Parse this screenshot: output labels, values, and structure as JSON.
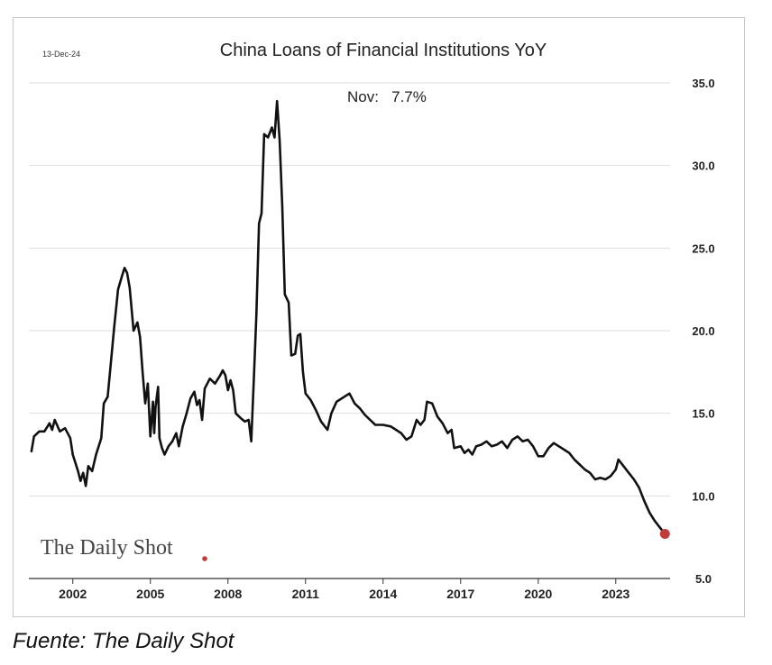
{
  "date_stamp": "13-Dec-24",
  "annotation": "Nov:   7.7%",
  "logo": "The Daily Shot",
  "caption": "Fuente: The Daily Shot",
  "colors": {
    "line": "#111111",
    "last_point": "#c23b3b",
    "grid": "#dddddd",
    "logo_dot": "#c23b3b"
  },
  "chart_data": {
    "type": "line",
    "title": "China Loans of Financial Institutions YoY",
    "xlabel": "",
    "ylabel": "",
    "xlim": [
      2000.3,
      2025.1
    ],
    "ylim": [
      5.0,
      35.0
    ],
    "x_ticks": [
      2002,
      2005,
      2008,
      2011,
      2014,
      2017,
      2020,
      2023
    ],
    "x_tick_labels": [
      "2002",
      "2005",
      "2008",
      "2011",
      "2014",
      "2017",
      "2020",
      "2023"
    ],
    "y_ticks": [
      5,
      10,
      15,
      20,
      25,
      30,
      35
    ],
    "y_tick_labels": [
      "5.0",
      "10.0",
      "15.0",
      "20.0",
      "25.0",
      "30.0",
      "35.0"
    ],
    "y_axis_position": "right",
    "grid": "horizontal",
    "series": [
      {
        "values": [
          [
            2000.4,
            12.7
          ],
          [
            2000.5,
            13.6
          ],
          [
            2000.7,
            13.9
          ],
          [
            2000.9,
            13.9
          ],
          [
            2001.1,
            14.4
          ],
          [
            2001.2,
            14.0
          ],
          [
            2001.3,
            14.6
          ],
          [
            2001.5,
            13.9
          ],
          [
            2001.7,
            14.1
          ],
          [
            2001.9,
            13.5
          ],
          [
            2002.0,
            12.5
          ],
          [
            2002.2,
            11.5
          ],
          [
            2002.3,
            10.9
          ],
          [
            2002.4,
            11.4
          ],
          [
            2002.5,
            10.6
          ],
          [
            2002.6,
            11.8
          ],
          [
            2002.75,
            11.5
          ],
          [
            2002.9,
            12.5
          ],
          [
            2003.1,
            13.5
          ],
          [
            2003.2,
            15.6
          ],
          [
            2003.35,
            16.0
          ],
          [
            2003.5,
            18.5
          ],
          [
            2003.6,
            20.2
          ],
          [
            2003.75,
            22.5
          ],
          [
            2003.9,
            23.3
          ],
          [
            2004.0,
            23.8
          ],
          [
            2004.1,
            23.5
          ],
          [
            2004.2,
            22.6
          ],
          [
            2004.35,
            20.0
          ],
          [
            2004.5,
            20.5
          ],
          [
            2004.6,
            19.6
          ],
          [
            2004.7,
            17.5
          ],
          [
            2004.8,
            15.6
          ],
          [
            2004.9,
            16.8
          ],
          [
            2005.0,
            13.6
          ],
          [
            2005.1,
            15.7
          ],
          [
            2005.15,
            13.8
          ],
          [
            2005.2,
            15.4
          ],
          [
            2005.3,
            16.6
          ],
          [
            2005.35,
            13.5
          ],
          [
            2005.45,
            12.9
          ],
          [
            2005.55,
            12.5
          ],
          [
            2005.7,
            13.0
          ],
          [
            2005.85,
            13.3
          ],
          [
            2006.0,
            13.8
          ],
          [
            2006.1,
            13.0
          ],
          [
            2006.25,
            14.2
          ],
          [
            2006.4,
            15.0
          ],
          [
            2006.55,
            15.9
          ],
          [
            2006.7,
            16.3
          ],
          [
            2006.8,
            15.5
          ],
          [
            2006.9,
            15.8
          ],
          [
            2007.0,
            14.6
          ],
          [
            2007.1,
            16.5
          ],
          [
            2007.3,
            17.1
          ],
          [
            2007.5,
            16.8
          ],
          [
            2007.7,
            17.3
          ],
          [
            2007.8,
            17.6
          ],
          [
            2007.9,
            17.3
          ],
          [
            2008.0,
            16.4
          ],
          [
            2008.1,
            17.0
          ],
          [
            2008.2,
            16.4
          ],
          [
            2008.3,
            15.0
          ],
          [
            2008.5,
            14.7
          ],
          [
            2008.65,
            14.5
          ],
          [
            2008.8,
            14.6
          ],
          [
            2008.9,
            13.3
          ],
          [
            2009.0,
            17.0
          ],
          [
            2009.1,
            21.0
          ],
          [
            2009.2,
            26.5
          ],
          [
            2009.3,
            27.1
          ],
          [
            2009.4,
            31.9
          ],
          [
            2009.55,
            31.7
          ],
          [
            2009.7,
            32.3
          ],
          [
            2009.8,
            31.7
          ],
          [
            2009.9,
            33.9
          ],
          [
            2010.0,
            31.5
          ],
          [
            2010.1,
            27.5
          ],
          [
            2010.2,
            22.2
          ],
          [
            2010.35,
            21.7
          ],
          [
            2010.45,
            18.5
          ],
          [
            2010.6,
            18.6
          ],
          [
            2010.7,
            19.7
          ],
          [
            2010.8,
            19.8
          ],
          [
            2010.9,
            17.5
          ],
          [
            2011.0,
            16.2
          ],
          [
            2011.2,
            15.8
          ],
          [
            2011.4,
            15.2
          ],
          [
            2011.6,
            14.5
          ],
          [
            2011.85,
            14.0
          ],
          [
            2012.0,
            15.0
          ],
          [
            2012.2,
            15.7
          ],
          [
            2012.5,
            16.0
          ],
          [
            2012.7,
            16.2
          ],
          [
            2012.9,
            15.6
          ],
          [
            2013.1,
            15.3
          ],
          [
            2013.3,
            14.9
          ],
          [
            2013.5,
            14.6
          ],
          [
            2013.7,
            14.3
          ],
          [
            2014.0,
            14.3
          ],
          [
            2014.3,
            14.2
          ],
          [
            2014.5,
            14.0
          ],
          [
            2014.7,
            13.8
          ],
          [
            2014.9,
            13.4
          ],
          [
            2015.1,
            13.6
          ],
          [
            2015.3,
            14.6
          ],
          [
            2015.45,
            14.3
          ],
          [
            2015.6,
            14.6
          ],
          [
            2015.7,
            15.7
          ],
          [
            2015.9,
            15.6
          ],
          [
            2016.1,
            14.8
          ],
          [
            2016.3,
            14.4
          ],
          [
            2016.5,
            13.8
          ],
          [
            2016.65,
            14.0
          ],
          [
            2016.75,
            12.9
          ],
          [
            2017.0,
            13.0
          ],
          [
            2017.15,
            12.6
          ],
          [
            2017.3,
            12.8
          ],
          [
            2017.45,
            12.5
          ],
          [
            2017.6,
            13.0
          ],
          [
            2017.8,
            13.1
          ],
          [
            2018.0,
            13.3
          ],
          [
            2018.2,
            13.0
          ],
          [
            2018.4,
            13.1
          ],
          [
            2018.6,
            13.3
          ],
          [
            2018.8,
            12.9
          ],
          [
            2019.0,
            13.4
          ],
          [
            2019.2,
            13.6
          ],
          [
            2019.4,
            13.3
          ],
          [
            2019.6,
            13.4
          ],
          [
            2019.8,
            13.0
          ],
          [
            2020.0,
            12.4
          ],
          [
            2020.2,
            12.4
          ],
          [
            2020.4,
            12.9
          ],
          [
            2020.6,
            13.2
          ],
          [
            2020.8,
            13.0
          ],
          [
            2021.0,
            12.8
          ],
          [
            2021.2,
            12.6
          ],
          [
            2021.4,
            12.2
          ],
          [
            2021.6,
            11.9
          ],
          [
            2021.8,
            11.6
          ],
          [
            2022.0,
            11.4
          ],
          [
            2022.2,
            11.0
          ],
          [
            2022.4,
            11.1
          ],
          [
            2022.6,
            11.0
          ],
          [
            2022.8,
            11.2
          ],
          [
            2023.0,
            11.6
          ],
          [
            2023.1,
            12.2
          ],
          [
            2023.3,
            11.8
          ],
          [
            2023.5,
            11.4
          ],
          [
            2023.7,
            11.0
          ],
          [
            2023.9,
            10.5
          ],
          [
            2024.1,
            9.7
          ],
          [
            2024.3,
            9.0
          ],
          [
            2024.5,
            8.5
          ],
          [
            2024.7,
            8.1
          ],
          [
            2024.9,
            7.7
          ]
        ]
      }
    ]
  }
}
